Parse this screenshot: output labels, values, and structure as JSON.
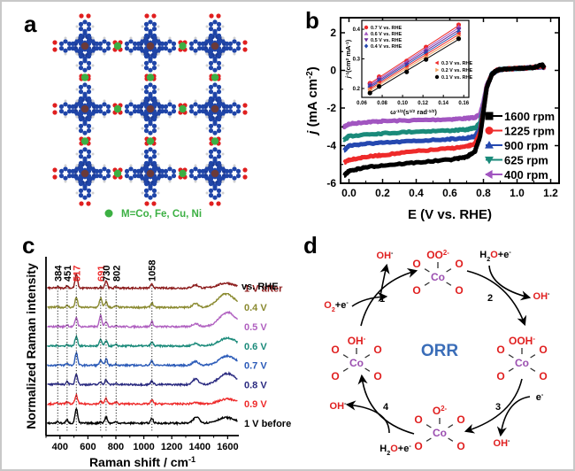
{
  "figure": {
    "panels": {
      "a": {
        "label": "a",
        "legend_text": "M=Co, Fe, Cu, Ni",
        "legend_color": "#3cb043"
      },
      "b": {
        "label": "b"
      },
      "c": {
        "label": "c"
      },
      "d": {
        "label": "d"
      }
    }
  },
  "colors": {
    "frame": "#c8c8c8",
    "carbon": "#1f45a8",
    "oxygen": "#e01f1f",
    "hydrogen": "#d0d0d0",
    "metal_node": "#6b3a3a",
    "metal_link": "#3cb043",
    "co": "#9b4fb0",
    "orr": "#3a6db8"
  },
  "chart_data": [
    {
      "panel": "b",
      "type": "line",
      "title": "",
      "xlabel": "E (V vs. RHE)",
      "ylabel": "j (mA cm-2)",
      "ylabel_italic_part": "j",
      "ylabel_rest": " (mA cm",
      "ylabel_sup": "-2",
      "ylabel_close": ")",
      "xlim": [
        -0.05,
        1.25
      ],
      "ylim": [
        -6,
        2.8
      ],
      "xticks": [
        0.0,
        0.2,
        0.4,
        0.6,
        0.8,
        1.0,
        1.2
      ],
      "xtick_labels": [
        "0.0",
        "0.2",
        "0.4",
        "0.6",
        "0.8",
        "1.0",
        "1.2"
      ],
      "yticks": [
        -6,
        -4,
        -2,
        0,
        2
      ],
      "ytick_labels": [
        "-6",
        "-4",
        "-2",
        "0",
        "2"
      ],
      "legend_position": "lower-right",
      "series": [
        {
          "name": "1600 rpm",
          "color": "#000000",
          "marker": "square",
          "x": [
            -0.03,
            0.0,
            0.1,
            0.2,
            0.4,
            0.6,
            0.7,
            0.75,
            0.78,
            0.8,
            0.82,
            0.85,
            0.88,
            0.9,
            1.0,
            1.1,
            1.15,
            1.16
          ],
          "y": [
            -5.6,
            -5.35,
            -5.15,
            -5.05,
            -4.9,
            -4.75,
            -4.6,
            -4.3,
            -3.5,
            -2.2,
            -0.9,
            -0.2,
            0.0,
            0.05,
            0.1,
            0.15,
            0.3,
            0.15
          ]
        },
        {
          "name": "1225 rpm",
          "color": "#ee2a2a",
          "marker": "circle",
          "x": [
            -0.03,
            0.0,
            0.1,
            0.2,
            0.4,
            0.6,
            0.7,
            0.75,
            0.78,
            0.8,
            0.82,
            0.85,
            0.88,
            0.9,
            1.0,
            1.1,
            1.15,
            1.16
          ],
          "y": [
            -4.9,
            -4.75,
            -4.6,
            -4.5,
            -4.3,
            -4.15,
            -4.05,
            -3.9,
            -3.3,
            -2.1,
            -0.9,
            -0.2,
            0.0,
            0.05,
            0.1,
            0.15,
            0.25,
            0.15
          ]
        },
        {
          "name": "900 rpm",
          "color": "#2548b0",
          "marker": "triangle-up",
          "x": [
            -0.03,
            0.0,
            0.1,
            0.2,
            0.4,
            0.6,
            0.7,
            0.75,
            0.78,
            0.8,
            0.82,
            0.85,
            0.88,
            0.9,
            1.0,
            1.1,
            1.15,
            1.16
          ],
          "y": [
            -4.25,
            -4.0,
            -3.9,
            -3.85,
            -3.75,
            -3.65,
            -3.6,
            -3.5,
            -3.1,
            -2.0,
            -0.9,
            -0.2,
            0.0,
            0.05,
            0.1,
            0.15,
            0.2,
            0.15
          ]
        },
        {
          "name": "625 rpm",
          "color": "#1a8a7a",
          "marker": "triangle-down",
          "x": [
            -0.03,
            0.0,
            0.1,
            0.2,
            0.4,
            0.6,
            0.7,
            0.75,
            0.78,
            0.8,
            0.82,
            0.85,
            0.88,
            0.9,
            1.0,
            1.1,
            1.15,
            1.16
          ],
          "y": [
            -3.7,
            -3.5,
            -3.4,
            -3.35,
            -3.25,
            -3.2,
            -3.15,
            -3.05,
            -2.8,
            -1.9,
            -0.9,
            -0.2,
            0.0,
            0.05,
            0.1,
            0.15,
            0.2,
            0.15
          ]
        },
        {
          "name": "400 rpm",
          "color": "#a155c0",
          "marker": "triangle-left",
          "x": [
            -0.03,
            0.0,
            0.1,
            0.2,
            0.4,
            0.6,
            0.7,
            0.75,
            0.78,
            0.8,
            0.82,
            0.85,
            0.88,
            0.9,
            1.0,
            1.1,
            1.15,
            1.16
          ],
          "y": [
            -3.0,
            -2.85,
            -2.75,
            -2.7,
            -2.65,
            -2.6,
            -2.55,
            -2.5,
            -2.35,
            -1.7,
            -0.8,
            -0.2,
            0.0,
            0.05,
            0.1,
            0.15,
            0.2,
            0.15
          ]
        }
      ],
      "inset": {
        "type": "scatter",
        "xlabel": "ω^-1/2(s^1/2 rad^-1/2)",
        "xlabel_main": "ω",
        "xlabel_sup1": "-1/2",
        "xlabel_mid": "(s",
        "xlabel_sup2": "1/2",
        "xlabel_mid2": " rad",
        "xlabel_sup3": "-1/2",
        "xlabel_end": ")",
        "ylabel": "j^-1(cm^2 mA^-1)",
        "ylabel_main": "j",
        "ylabel_sup1": "-1",
        "ylabel_mid": "(cm",
        "ylabel_sup2": "2",
        "ylabel_mid2": " mA",
        "ylabel_sup3": "-1",
        "ylabel_end": ")",
        "xlim": [
          0.06,
          0.165
        ],
        "ylim": [
          0.17,
          0.43
        ],
        "xticks": [
          0.06,
          0.08,
          0.1,
          0.12,
          0.14,
          0.16
        ],
        "xtick_labels": [
          "0.06",
          "0.08",
          "0.10",
          "0.12",
          "0.14",
          "0.16"
        ],
        "yticks": [
          0.2,
          0.3,
          0.4
        ],
        "ytick_labels": [
          "0.2",
          "0.3",
          "0.4"
        ],
        "x": [
          0.068,
          0.077,
          0.104,
          0.123,
          0.155
        ],
        "series": [
          {
            "name": "0.7 V vs. RHE",
            "color": "#ee2a2a",
            "marker": "circle",
            "y": [
              0.218,
              0.24,
              0.293,
              0.34,
              0.415
            ]
          },
          {
            "name": "0.6 V vs. RHE",
            "color": "#a155c0",
            "marker": "triangle-up",
            "y": [
              0.214,
              0.235,
              0.287,
              0.332,
              0.408
            ]
          },
          {
            "name": "0.5 V vs. RHE",
            "color": "#6a2a9a",
            "marker": "triangle-down",
            "y": [
              0.21,
              0.23,
              0.281,
              0.326,
              0.4
            ]
          },
          {
            "name": "0.4 V vs. RHE",
            "color": "#2548b0",
            "marker": "diamond",
            "y": [
              0.205,
              0.225,
              0.276,
              0.32,
              0.392
            ]
          },
          {
            "name": "0.3 V vs. RHE",
            "color": "#ee2a2a",
            "marker": "triangle-left",
            "y": [
              0.2,
              0.22,
              0.27,
              0.313,
              0.385
            ]
          },
          {
            "name": "0.2 V vs. RHE",
            "color": "#f0a060",
            "marker": "triangle-right",
            "y": [
              0.195,
              0.214,
              0.264,
              0.306,
              0.377
            ]
          },
          {
            "name": "0.1 V vs. RHE",
            "color": "#000000",
            "marker": "circle",
            "y": [
              0.185,
              0.207,
              0.256,
              0.298,
              0.368
            ]
          }
        ]
      }
    },
    {
      "panel": "c",
      "type": "line",
      "title": "",
      "xlabel": "Raman shift / cm",
      "xlabel_sup": "-1",
      "ylabel": "Normalized Raman intensity",
      "xlim": [
        300,
        1680
      ],
      "xticks": [
        400,
        600,
        800,
        1000,
        1200,
        1400,
        1600
      ],
      "xtick_labels": [
        "400",
        "600",
        "800",
        "1000",
        "1200",
        "1400",
        "1600"
      ],
      "yticks": [],
      "legend_title": "vs. RHE",
      "legend_position": "right",
      "peak_markers": [
        {
          "x": 384,
          "label": "384",
          "color": "#000000"
        },
        {
          "x": 451,
          "label": "451",
          "color": "#000000"
        },
        {
          "x": 517,
          "label": "517",
          "color": "#ee2a2a"
        },
        {
          "x": 691,
          "label": "691",
          "color": "#ee2a2a"
        },
        {
          "x": 730,
          "label": "730",
          "color": "#000000"
        },
        {
          "x": 802,
          "label": "802",
          "color": "#000000"
        },
        {
          "x": 1058,
          "label": "1058",
          "color": "#000000"
        }
      ],
      "series": [
        {
          "name": "1 V after",
          "color": "#8b1a1a",
          "offset": 7,
          "peaks": [
            [
              384,
              0.15
            ],
            [
              451,
              0.35
            ],
            [
              517,
              2.2
            ],
            [
              691,
              0.1
            ],
            [
              730,
              1.2
            ],
            [
              802,
              0.2
            ],
            [
              1058,
              0.6
            ],
            [
              1370,
              0.5
            ],
            [
              1590,
              0.8
            ]
          ]
        },
        {
          "name": "0.4 V",
          "color": "#8a8a30",
          "offset": 6,
          "peaks": [
            [
              384,
              0.1
            ],
            [
              451,
              0.3
            ],
            [
              517,
              1.6
            ],
            [
              691,
              1.5
            ],
            [
              730,
              0.9
            ],
            [
              802,
              0.2
            ],
            [
              1058,
              0.7
            ],
            [
              1370,
              0.6
            ],
            [
              1590,
              2.2
            ]
          ]
        },
        {
          "name": "0.5 V",
          "color": "#b060c0",
          "offset": 5,
          "peaks": [
            [
              384,
              0.1
            ],
            [
              451,
              0.3
            ],
            [
              517,
              1.5
            ],
            [
              691,
              1.8
            ],
            [
              730,
              0.9
            ],
            [
              802,
              0.2
            ],
            [
              1058,
              0.8
            ],
            [
              1370,
              0.5
            ],
            [
              1600,
              2.3
            ]
          ]
        },
        {
          "name": "0.6 V",
          "color": "#1a8a7a",
          "offset": 4,
          "peaks": [
            [
              384,
              0.1
            ],
            [
              451,
              0.2
            ],
            [
              517,
              1.6
            ],
            [
              691,
              1.0
            ],
            [
              730,
              0.8
            ],
            [
              802,
              0.2
            ],
            [
              1058,
              0.6
            ],
            [
              1370,
              0.4
            ],
            [
              1600,
              1.3
            ]
          ]
        },
        {
          "name": "0.7 V",
          "color": "#2a5ab8",
          "offset": 3,
          "peaks": [
            [
              384,
              0.1
            ],
            [
              451,
              0.3
            ],
            [
              517,
              2.0
            ],
            [
              691,
              0.8
            ],
            [
              730,
              1.0
            ],
            [
              802,
              0.2
            ],
            [
              1058,
              0.7
            ],
            [
              1370,
              0.6
            ],
            [
              1600,
              1.5
            ]
          ]
        },
        {
          "name": "0.8 V",
          "color": "#2a2a80",
          "offset": 2,
          "peaks": [
            [
              384,
              0.2
            ],
            [
              451,
              0.5
            ],
            [
              517,
              1.8
            ],
            [
              691,
              0.4
            ],
            [
              730,
              0.8
            ],
            [
              802,
              0.2
            ],
            [
              1058,
              0.6
            ],
            [
              1370,
              0.9
            ],
            [
              1600,
              1.8
            ]
          ]
        },
        {
          "name": "0.9 V",
          "color": "#ee2a2a",
          "offset": 1,
          "peaks": [
            [
              384,
              0.15
            ],
            [
              451,
              0.3
            ],
            [
              517,
              1.4
            ],
            [
              691,
              0.4
            ],
            [
              730,
              0.9
            ],
            [
              802,
              0.3
            ],
            [
              1058,
              0.6
            ],
            [
              1370,
              0.2
            ],
            [
              1600,
              0.8
            ]
          ]
        },
        {
          "name": "1 V before",
          "color": "#000000",
          "offset": 0,
          "peaks": [
            [
              384,
              0.25
            ],
            [
              451,
              0.5
            ],
            [
              517,
              2.4
            ],
            [
              691,
              0.2
            ],
            [
              730,
              1.0
            ],
            [
              802,
              0.3
            ],
            [
              1058,
              0.8
            ],
            [
              1377,
              1.0
            ],
            [
              1590,
              0.9
            ]
          ]
        }
      ]
    }
  ],
  "diagram_d": {
    "center_label": "ORR",
    "metal": "Co",
    "ligand": "O",
    "nodes": [
      {
        "id": "top",
        "axial": "OO",
        "axial_sup": "2-"
      },
      {
        "id": "right",
        "axial": "OOH",
        "axial_sup": "-"
      },
      {
        "id": "bottom",
        "axial": "O",
        "axial_sup": "2-"
      },
      {
        "id": "left",
        "axial": "OH",
        "axial_sup": "-"
      }
    ],
    "steps": [
      {
        "num": "1",
        "in": "O2+e-",
        "out": "OH-"
      },
      {
        "num": "2",
        "in": "H2O+e-",
        "out": "OH-"
      },
      {
        "num": "3",
        "in": "e-",
        "out": "OH-"
      },
      {
        "num": "4",
        "in": "H2O+e-",
        "out": "OH-"
      }
    ]
  }
}
